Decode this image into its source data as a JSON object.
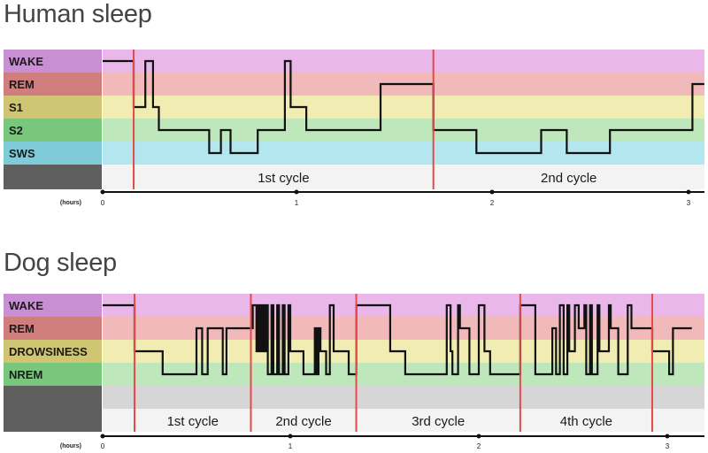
{
  "colors": {
    "WAKE": "#e9b7e9",
    "REM": "#f1b9b9",
    "S1": "#f1ecb1",
    "DROWSINESS": "#f1ecb1",
    "S2": "#bfe7bc",
    "NREM": "#bfe7bc",
    "SWS": "#b3e6ef",
    "label_WAKE": "#c98fd3",
    "label_REM": "#cf7d7d",
    "label_S1": "#cfc572",
    "label_DROWSINESS": "#cfc572",
    "label_S2": "#79c77d",
    "label_NREM": "#79c77d",
    "label_SWS": "#7fcbd8",
    "label_empty": "#5f5f5f",
    "cycle_row": "#f3f3f3",
    "gray_row": "#d6d6d6",
    "cycle_line": "#e34a4a",
    "hypnogram": "#111111"
  },
  "chart_data": [
    {
      "type": "line",
      "title": "Human sleep",
      "xlabel": "(hours)",
      "xlim": [
        0,
        3.08
      ],
      "xticks": [
        0,
        1,
        2,
        3
      ],
      "stages": [
        "WAKE",
        "REM",
        "S1",
        "S2",
        "SWS"
      ],
      "cycles": [
        {
          "label": "1st cycle",
          "start": 0.16,
          "end": 1.7
        },
        {
          "label": "2nd cycle",
          "start": 1.7,
          "end": 3.08
        }
      ],
      "cycle_boundaries": [
        0.16,
        1.7
      ],
      "series": [
        {
          "steps": [
            {
              "start": 0.0,
              "end": 0.16,
              "stage": "WAKE"
            },
            {
              "start": 0.16,
              "end": 0.22,
              "stage": "S1"
            },
            {
              "start": 0.22,
              "end": 0.26,
              "stage": "WAKE"
            },
            {
              "start": 0.26,
              "end": 0.29,
              "stage": "S1"
            },
            {
              "start": 0.29,
              "end": 0.55,
              "stage": "S2"
            },
            {
              "start": 0.55,
              "end": 0.61,
              "stage": "SWS"
            },
            {
              "start": 0.61,
              "end": 0.66,
              "stage": "S2"
            },
            {
              "start": 0.66,
              "end": 0.8,
              "stage": "SWS"
            },
            {
              "start": 0.8,
              "end": 0.94,
              "stage": "S2"
            },
            {
              "start": 0.94,
              "end": 0.97,
              "stage": "WAKE"
            },
            {
              "start": 0.97,
              "end": 1.05,
              "stage": "S1"
            },
            {
              "start": 1.05,
              "end": 1.43,
              "stage": "S2"
            },
            {
              "start": 1.43,
              "end": 1.7,
              "stage": "REM"
            },
            {
              "start": 1.7,
              "end": 1.92,
              "stage": "S2"
            },
            {
              "start": 1.92,
              "end": 2.25,
              "stage": "SWS"
            },
            {
              "start": 2.25,
              "end": 2.38,
              "stage": "S2"
            },
            {
              "start": 2.38,
              "end": 2.6,
              "stage": "SWS"
            },
            {
              "start": 2.6,
              "end": 3.02,
              "stage": "S2"
            },
            {
              "start": 3.02,
              "end": 3.08,
              "stage": "REM"
            }
          ]
        }
      ]
    },
    {
      "type": "line",
      "title": "Dog sleep",
      "xlabel": "(hours)",
      "xlim": [
        0,
        3.13
      ],
      "xticks": [
        0,
        1,
        2,
        3
      ],
      "stages": [
        "WAKE",
        "REM",
        "DROWSINESS",
        "NREM"
      ],
      "cycles": [
        {
          "label": "1st cycle",
          "start": 0.17,
          "end": 0.79
        },
        {
          "label": "2nd cycle",
          "start": 0.79,
          "end": 1.35
        },
        {
          "label": "3rd cycle",
          "start": 1.35,
          "end": 2.22
        },
        {
          "label": "4th cycle",
          "start": 2.22,
          "end": 2.92
        }
      ],
      "cycle_boundaries": [
        0.17,
        0.79,
        1.35,
        2.22,
        2.92
      ],
      "series": [
        {
          "steps": [
            {
              "start": 0.0,
              "end": 0.17,
              "stage": "WAKE"
            },
            {
              "start": 0.17,
              "end": 0.32,
              "stage": "DROWSINESS"
            },
            {
              "start": 0.32,
              "end": 0.5,
              "stage": "NREM"
            },
            {
              "start": 0.5,
              "end": 0.53,
              "stage": "REM"
            },
            {
              "start": 0.53,
              "end": 0.56,
              "stage": "NREM"
            },
            {
              "start": 0.56,
              "end": 0.64,
              "stage": "REM"
            },
            {
              "start": 0.64,
              "end": 0.66,
              "stage": "NREM"
            },
            {
              "start": 0.66,
              "end": 0.71,
              "stage": "REM"
            },
            {
              "start": 0.71,
              "end": 0.8,
              "stage": "REM"
            },
            {
              "start": 0.8,
              "end": 0.82,
              "stage": "WAKE"
            },
            {
              "start": 0.82,
              "end": 0.83,
              "stage": "DROWSINESS"
            },
            {
              "start": 0.83,
              "end": 0.84,
              "stage": "WAKE"
            },
            {
              "start": 0.84,
              "end": 0.85,
              "stage": "DROWSINESS"
            },
            {
              "start": 0.85,
              "end": 0.86,
              "stage": "WAKE"
            },
            {
              "start": 0.86,
              "end": 0.87,
              "stage": "DROWSINESS"
            },
            {
              "start": 0.87,
              "end": 0.88,
              "stage": "WAKE"
            },
            {
              "start": 0.88,
              "end": 0.9,
              "stage": "NREM"
            },
            {
              "start": 0.9,
              "end": 0.91,
              "stage": "WAKE"
            },
            {
              "start": 0.91,
              "end": 0.93,
              "stage": "NREM"
            },
            {
              "start": 0.93,
              "end": 0.94,
              "stage": "WAKE"
            },
            {
              "start": 0.94,
              "end": 0.96,
              "stage": "NREM"
            },
            {
              "start": 0.96,
              "end": 0.97,
              "stage": "WAKE"
            },
            {
              "start": 0.97,
              "end": 0.99,
              "stage": "NREM"
            },
            {
              "start": 0.99,
              "end": 1.0,
              "stage": "WAKE"
            },
            {
              "start": 1.0,
              "end": 1.07,
              "stage": "DROWSINESS"
            },
            {
              "start": 1.07,
              "end": 1.13,
              "stage": "NREM"
            },
            {
              "start": 1.13,
              "end": 1.14,
              "stage": "REM"
            },
            {
              "start": 1.14,
              "end": 1.15,
              "stage": "NREM"
            },
            {
              "start": 1.15,
              "end": 1.16,
              "stage": "REM"
            },
            {
              "start": 1.16,
              "end": 1.19,
              "stage": "DROWSINESS"
            },
            {
              "start": 1.19,
              "end": 1.21,
              "stage": "NREM"
            },
            {
              "start": 1.21,
              "end": 1.23,
              "stage": "WAKE"
            },
            {
              "start": 1.23,
              "end": 1.31,
              "stage": "DROWSINESS"
            },
            {
              "start": 1.31,
              "end": 1.35,
              "stage": "NREM"
            },
            {
              "start": 1.35,
              "end": 1.53,
              "stage": "WAKE"
            },
            {
              "start": 1.53,
              "end": 1.61,
              "stage": "DROWSINESS"
            },
            {
              "start": 1.61,
              "end": 1.83,
              "stage": "NREM"
            },
            {
              "start": 1.83,
              "end": 1.85,
              "stage": "WAKE"
            },
            {
              "start": 1.85,
              "end": 1.86,
              "stage": "DROWSINESS"
            },
            {
              "start": 1.86,
              "end": 1.89,
              "stage": "NREM"
            },
            {
              "start": 1.89,
              "end": 1.9,
              "stage": "WAKE"
            },
            {
              "start": 1.9,
              "end": 1.95,
              "stage": "REM"
            },
            {
              "start": 1.95,
              "end": 2.0,
              "stage": "NREM"
            },
            {
              "start": 2.0,
              "end": 2.03,
              "stage": "WAKE"
            },
            {
              "start": 2.03,
              "end": 2.06,
              "stage": "DROWSINESS"
            },
            {
              "start": 2.06,
              "end": 2.22,
              "stage": "NREM"
            },
            {
              "start": 2.22,
              "end": 2.3,
              "stage": "WAKE"
            },
            {
              "start": 2.3,
              "end": 2.39,
              "stage": "NREM"
            },
            {
              "start": 2.39,
              "end": 2.41,
              "stage": "REM"
            },
            {
              "start": 2.41,
              "end": 2.43,
              "stage": "NREM"
            },
            {
              "start": 2.43,
              "end": 2.45,
              "stage": "WAKE"
            },
            {
              "start": 2.45,
              "end": 2.47,
              "stage": "NREM"
            },
            {
              "start": 2.47,
              "end": 2.48,
              "stage": "WAKE"
            },
            {
              "start": 2.48,
              "end": 2.51,
              "stage": "DROWSINESS"
            },
            {
              "start": 2.51,
              "end": 2.53,
              "stage": "WAKE"
            },
            {
              "start": 2.53,
              "end": 2.56,
              "stage": "REM"
            },
            {
              "start": 2.56,
              "end": 2.57,
              "stage": "WAKE"
            },
            {
              "start": 2.57,
              "end": 2.59,
              "stage": "NREM"
            },
            {
              "start": 2.59,
              "end": 2.6,
              "stage": "WAKE"
            },
            {
              "start": 2.6,
              "end": 2.63,
              "stage": "NREM"
            },
            {
              "start": 2.63,
              "end": 2.64,
              "stage": "WAKE"
            },
            {
              "start": 2.64,
              "end": 2.69,
              "stage": "DROWSINESS"
            },
            {
              "start": 2.69,
              "end": 2.7,
              "stage": "WAKE"
            },
            {
              "start": 2.7,
              "end": 2.74,
              "stage": "REM"
            },
            {
              "start": 2.74,
              "end": 2.79,
              "stage": "NREM"
            },
            {
              "start": 2.79,
              "end": 2.81,
              "stage": "WAKE"
            },
            {
              "start": 2.81,
              "end": 2.92,
              "stage": "REM"
            },
            {
              "start": 2.92,
              "end": 3.01,
              "stage": "DROWSINESS"
            },
            {
              "start": 3.01,
              "end": 3.03,
              "stage": "NREM"
            },
            {
              "start": 3.03,
              "end": 3.13,
              "stage": "REM"
            }
          ]
        }
      ]
    }
  ]
}
